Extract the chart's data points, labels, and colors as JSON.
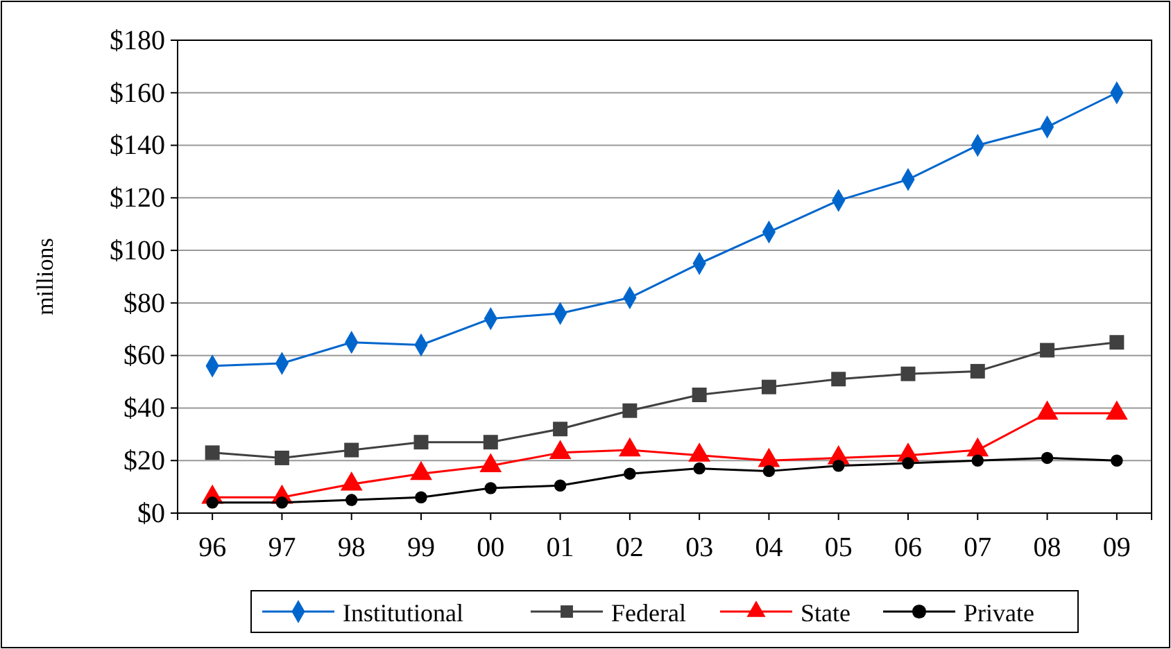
{
  "chart_data": {
    "type": "line",
    "ylabel": "millions",
    "categories": [
      "96",
      "97",
      "98",
      "99",
      "00",
      "01",
      "02",
      "03",
      "04",
      "05",
      "06",
      "07",
      "08",
      "09"
    ],
    "series": [
      {
        "name": "Institutional",
        "color": "#0066cc",
        "marker": "diamond",
        "values": [
          56,
          57,
          65,
          64,
          74,
          76,
          82,
          95,
          107,
          119,
          127,
          140,
          147,
          160
        ]
      },
      {
        "name": "Federal",
        "color": "#404040",
        "marker": "square",
        "values": [
          23,
          21,
          24,
          27,
          27,
          32,
          39,
          45,
          48,
          51,
          53,
          54,
          62,
          65
        ]
      },
      {
        "name": "State",
        "color": "#ff0000",
        "marker": "triangle",
        "values": [
          6,
          6,
          11,
          15,
          18,
          23,
          24,
          22,
          20,
          21,
          22,
          24,
          38,
          38
        ]
      },
      {
        "name": "Private",
        "color": "#000000",
        "marker": "circle",
        "values": [
          4,
          4,
          5,
          6,
          9.5,
          10.5,
          15,
          17,
          16,
          18,
          19,
          20,
          21,
          20
        ]
      }
    ],
    "ylim": [
      0,
      180
    ],
    "yticks": [
      {
        "value": 0,
        "label": "$0"
      },
      {
        "value": 20,
        "label": "$20"
      },
      {
        "value": 40,
        "label": "$40"
      },
      {
        "value": 60,
        "label": "$60"
      },
      {
        "value": 80,
        "label": "$80"
      },
      {
        "value": 100,
        "label": "$100"
      },
      {
        "value": 120,
        "label": "$120"
      },
      {
        "value": 140,
        "label": "$140"
      },
      {
        "value": 160,
        "label": "$160"
      },
      {
        "value": 180,
        "label": "$180"
      }
    ],
    "grid": "y",
    "legend": "bottom"
  }
}
